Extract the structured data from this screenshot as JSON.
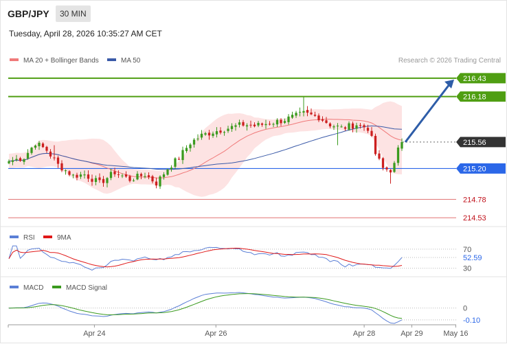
{
  "header": {
    "symbol": "GBP/JPY",
    "timeframe": "30 MIN",
    "datetime": "Tuesday, April 28, 2026 10:35:27 AM CET"
  },
  "legend": {
    "ma20": "MA 20 + Bollinger Bands",
    "ma50": "MA 50",
    "rsi": "RSI",
    "rsi_ma": "9MA",
    "macd": "MACD",
    "macd_signal": "MACD Signal"
  },
  "credit": "Research © 2026 Trading Central",
  "colors": {
    "candle_up": "#3a9a1e",
    "candle_down": "#cc1f1f",
    "bollinger": "#fcd9d9",
    "ma20": "#f07a7a",
    "ma50": "#3a5aa8",
    "resistance": "#4f9e12",
    "pivot": "#2b67e8",
    "support": "#e07070",
    "current": "#333333",
    "forecast_arrow": "#2e5da8",
    "rsi": "#5b7fd6",
    "rsi_ma": "#e01818",
    "macd": "#5b7fd6",
    "macd_signal": "#3a9a1e"
  },
  "levels": [
    {
      "value": 216.43,
      "label": "216.43",
      "kind": "resistance",
      "tag": true
    },
    {
      "value": 216.18,
      "label": "216.18",
      "kind": "resistance",
      "tag": true
    },
    {
      "value": 215.56,
      "label": "215.56",
      "kind": "current",
      "tag": true
    },
    {
      "value": 215.2,
      "label": "215.20",
      "kind": "pivot",
      "tag": true
    },
    {
      "value": 214.78,
      "label": "214.78",
      "kind": "support",
      "tag": false
    },
    {
      "value": 214.53,
      "label": "214.53",
      "kind": "support",
      "tag": false
    }
  ],
  "rsi_panel": {
    "levels": [
      {
        "value": 70,
        "label": "70"
      },
      {
        "value": 30,
        "label": "30"
      }
    ],
    "current": {
      "value": 52.59,
      "label": "52.59"
    }
  },
  "macd_panel": {
    "zero_label": "0",
    "current": {
      "value": -0.1,
      "label": "-0.10"
    }
  },
  "x_axis": {
    "ticks": [
      {
        "label": "Apr 24",
        "pos": 0.19
      },
      {
        "label": "Apr 26",
        "pos": 0.458
      },
      {
        "label": "Apr 28",
        "pos": 0.785
      },
      {
        "label": "Apr 29",
        "pos": 0.89
      },
      {
        "label": "May 16",
        "pos": 0.987
      }
    ]
  },
  "chart_data": {
    "type": "candlestick",
    "y_range": [
      214.4,
      216.55
    ],
    "close_anchors": [
      [
        0,
        215.3
      ],
      [
        4,
        215.35
      ],
      [
        7,
        215.55
      ],
      [
        10,
        215.45
      ],
      [
        13,
        215.25
      ],
      [
        17,
        215.1
      ],
      [
        20,
        215.12
      ],
      [
        24,
        215.0
      ],
      [
        28,
        215.15
      ],
      [
        32,
        215.05
      ],
      [
        36,
        215.12
      ],
      [
        39,
        215.0
      ],
      [
        42,
        215.2
      ],
      [
        45,
        215.35
      ],
      [
        48,
        215.55
      ],
      [
        51,
        215.65
      ],
      [
        54,
        215.7
      ],
      [
        58,
        215.75
      ],
      [
        62,
        215.8
      ],
      [
        65,
        215.78
      ],
      [
        69,
        215.82
      ],
      [
        72,
        215.85
      ],
      [
        75,
        215.9
      ],
      [
        78,
        215.95
      ],
      [
        82,
        215.9
      ],
      [
        85,
        215.8
      ],
      [
        88,
        215.75
      ],
      [
        92,
        215.8
      ],
      [
        95,
        215.75
      ],
      [
        96,
        215.6
      ],
      [
        97,
        215.4
      ],
      [
        99,
        215.2
      ],
      [
        101,
        215.18
      ],
      [
        102,
        215.25
      ],
      [
        103,
        215.45
      ],
      [
        104,
        215.56
      ]
    ],
    "forecast": {
      "from_value": 215.56,
      "to_value": 216.43
    }
  }
}
